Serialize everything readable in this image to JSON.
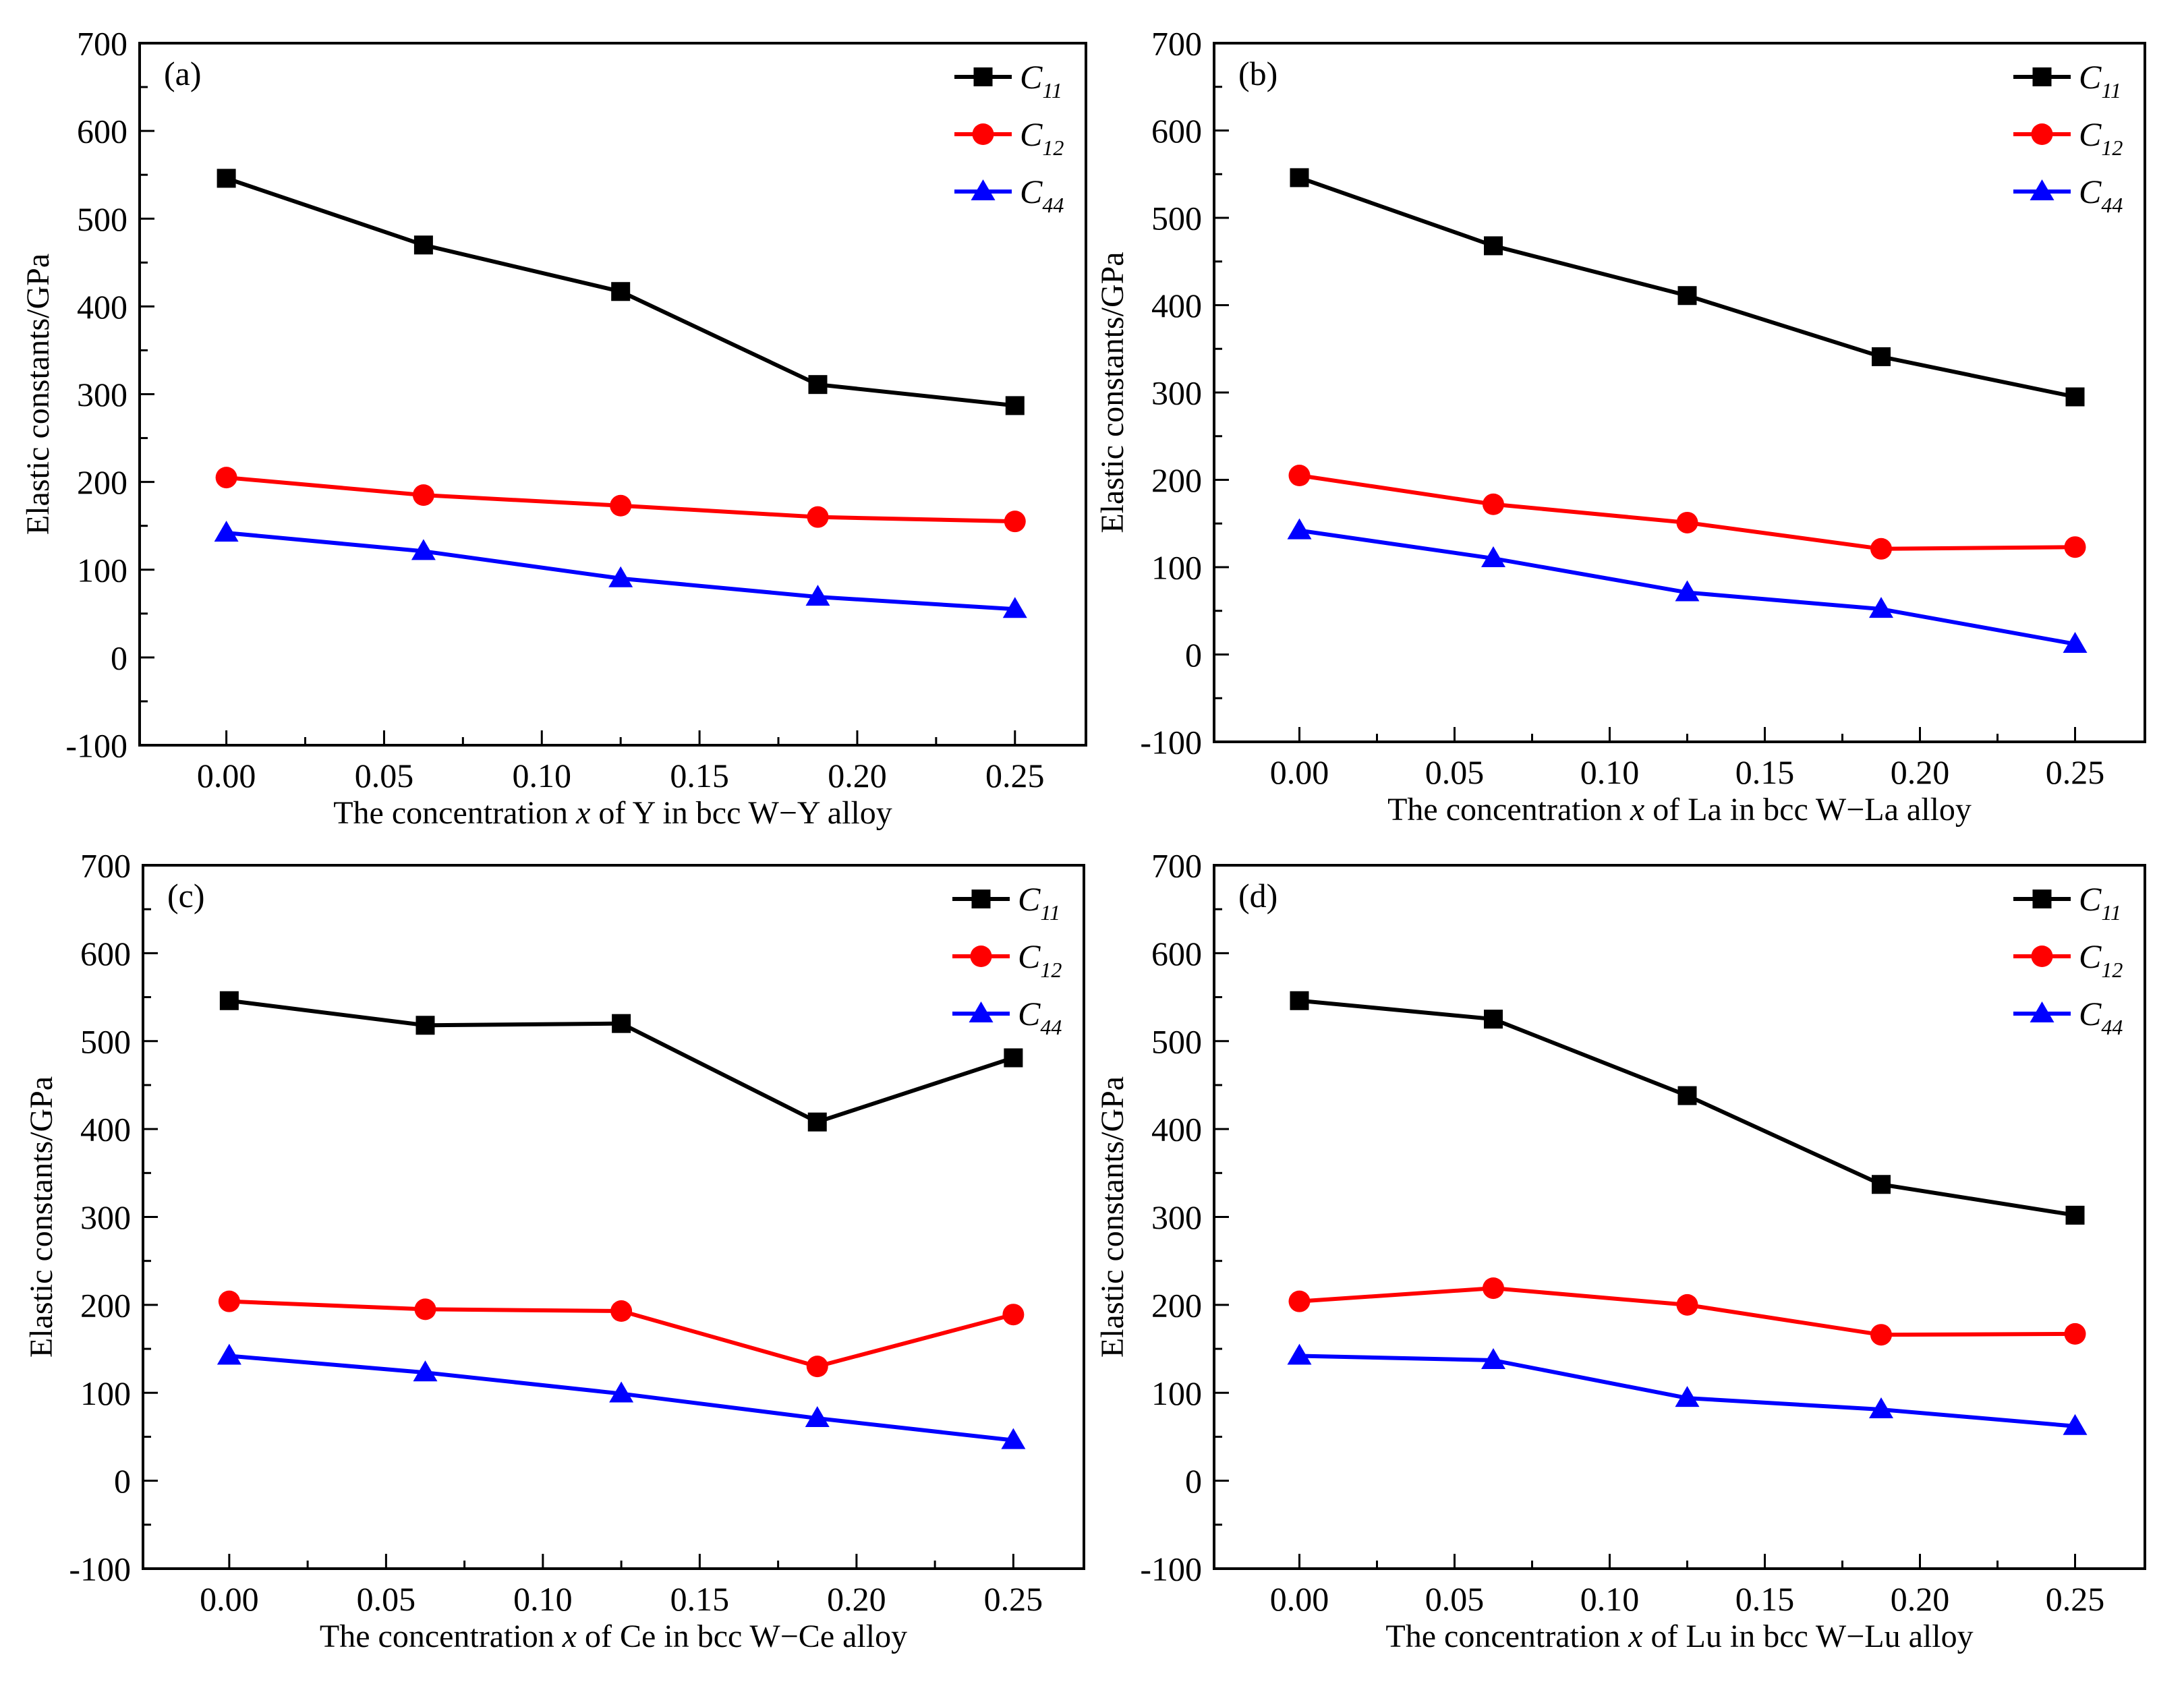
{
  "chart_data": [
    {
      "type": "line",
      "panel_label": "(a)",
      "xlabel_parts": [
        "The concentration ",
        "x",
        " of Y in bcc W−Y alloy"
      ],
      "ylabel": "Elastic constants/GPa",
      "xlim": [
        -0.0275,
        0.2725
      ],
      "ylim": [
        -100,
        700
      ],
      "xticks": [
        "0.00",
        "0.05",
        "0.10",
        "0.15",
        "0.20",
        "0.25"
      ],
      "yticks": [
        "-100",
        "0",
        "100",
        "200",
        "300",
        "400",
        "500",
        "600",
        "700"
      ],
      "x": [
        0,
        0.0625,
        0.125,
        0.1875,
        0.25
      ],
      "legend_position": "top-right",
      "series": [
        {
          "name": "C11",
          "sym": "C",
          "sub": "11",
          "color": "#000000",
          "marker": "square",
          "values": [
            546,
            470,
            417,
            311,
            287
          ]
        },
        {
          "name": "C12",
          "sym": "C",
          "sub": "12",
          "color": "#ff0000",
          "marker": "circle",
          "values": [
            205,
            185,
            173,
            160,
            155
          ]
        },
        {
          "name": "C44",
          "sym": "C",
          "sub": "44",
          "color": "#0000ff",
          "marker": "triangle",
          "values": [
            142,
            121,
            90,
            69,
            55
          ]
        }
      ]
    },
    {
      "type": "line",
      "panel_label": "(b)",
      "xlabel_parts": [
        "The concentration ",
        "x",
        " of La in bcc W−La alloy"
      ],
      "ylabel": "Elastic constants/GPa",
      "xlim": [
        -0.0275,
        0.2725
      ],
      "ylim": [
        -100,
        700
      ],
      "xticks": [
        "0.00",
        "0.05",
        "0.10",
        "0.15",
        "0.20",
        "0.25"
      ],
      "yticks": [
        "-100",
        "0",
        "100",
        "200",
        "300",
        "400",
        "500",
        "600",
        "700"
      ],
      "x": [
        0,
        0.0625,
        0.125,
        0.1875,
        0.25
      ],
      "legend_position": "top-right",
      "series": [
        {
          "name": "C11",
          "sym": "C",
          "sub": "11",
          "color": "#000000",
          "marker": "square",
          "values": [
            546,
            468,
            411,
            341,
            295
          ]
        },
        {
          "name": "C12",
          "sym": "C",
          "sub": "12",
          "color": "#ff0000",
          "marker": "circle",
          "values": [
            205,
            172,
            151,
            121,
            123
          ]
        },
        {
          "name": "C44",
          "sym": "C",
          "sub": "44",
          "color": "#0000ff",
          "marker": "triangle",
          "values": [
            142,
            110,
            71,
            52,
            12
          ]
        }
      ]
    },
    {
      "type": "line",
      "panel_label": "(c)",
      "xlabel_parts": [
        "The concentration ",
        "x",
        " of Ce in bcc W−Ce alloy"
      ],
      "ylabel": "Elastic constants/GPa",
      "xlim": [
        -0.0275,
        0.2725
      ],
      "ylim": [
        -100,
        700
      ],
      "xticks": [
        "0.00",
        "0.05",
        "0.10",
        "0.15",
        "0.20",
        "0.25"
      ],
      "yticks": [
        "-100",
        "0",
        "100",
        "200",
        "300",
        "400",
        "500",
        "600",
        "700"
      ],
      "x": [
        0,
        0.0625,
        0.125,
        0.1875,
        0.25
      ],
      "legend_position": "top-right",
      "series": [
        {
          "name": "C11",
          "sym": "C",
          "sub": "11",
          "color": "#000000",
          "marker": "square",
          "values": [
            546,
            518,
            520,
            408,
            481
          ]
        },
        {
          "name": "C12",
          "sym": "C",
          "sub": "12",
          "color": "#ff0000",
          "marker": "circle",
          "values": [
            204,
            195,
            193,
            130,
            189
          ]
        },
        {
          "name": "C44",
          "sym": "C",
          "sub": "44",
          "color": "#0000ff",
          "marker": "triangle",
          "values": [
            142,
            123,
            99,
            71,
            46
          ]
        }
      ]
    },
    {
      "type": "line",
      "panel_label": "(d)",
      "xlabel_parts": [
        "The concentration ",
        "x",
        " of Lu in bcc W−Lu alloy"
      ],
      "ylabel": "Elastic constants/GPa",
      "xlim": [
        -0.0275,
        0.2725
      ],
      "ylim": [
        -100,
        700
      ],
      "xticks": [
        "0.00",
        "0.05",
        "0.10",
        "0.15",
        "0.20",
        "0.25"
      ],
      "yticks": [
        "-100",
        "0",
        "100",
        "200",
        "300",
        "400",
        "500",
        "600",
        "700"
      ],
      "x": [
        0,
        0.0625,
        0.125,
        0.1875,
        0.25
      ],
      "legend_position": "top-right",
      "series": [
        {
          "name": "C11",
          "sym": "C",
          "sub": "11",
          "color": "#000000",
          "marker": "square",
          "values": [
            546,
            525,
            438,
            337,
            302
          ]
        },
        {
          "name": "C12",
          "sym": "C",
          "sub": "12",
          "color": "#ff0000",
          "marker": "circle",
          "values": [
            204,
            219,
            200,
            166,
            167
          ]
        },
        {
          "name": "C44",
          "sym": "C",
          "sub": "44",
          "color": "#0000ff",
          "marker": "triangle",
          "values": [
            142,
            137,
            94,
            81,
            62
          ]
        }
      ]
    }
  ]
}
